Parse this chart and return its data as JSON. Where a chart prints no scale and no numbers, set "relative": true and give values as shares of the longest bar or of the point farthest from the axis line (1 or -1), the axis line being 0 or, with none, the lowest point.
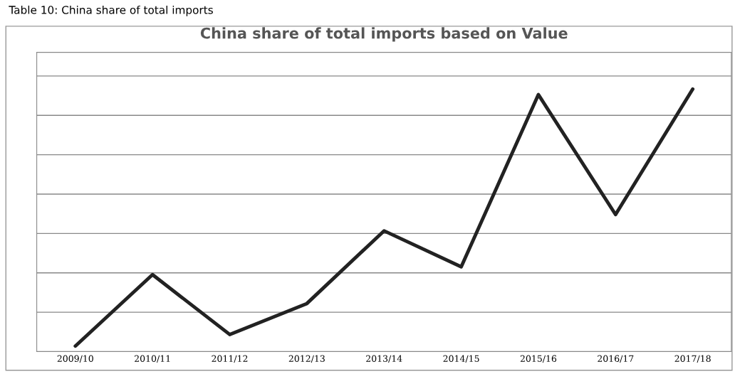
{
  "chart_data": {
    "type": "line",
    "title": "China share of total imports based on Value",
    "annotations": [
      "Table 10: China share of total imports"
    ],
    "categories": [
      "2009/10",
      "2010/11",
      "2011/12",
      "2012/13",
      "2013/14",
      "2014/15",
      "2015/16",
      "2016/17",
      "2017/18"
    ],
    "series": [
      {
        "color": "#222222",
        "values": [
          0.021,
          0.293,
          0.065,
          0.183,
          0.46,
          0.323,
          0.979,
          0.522,
          1
        ]
      }
    ],
    "relative": true,
    "grid": "y",
    "marker": "none",
    "line_style": "solid"
  }
}
